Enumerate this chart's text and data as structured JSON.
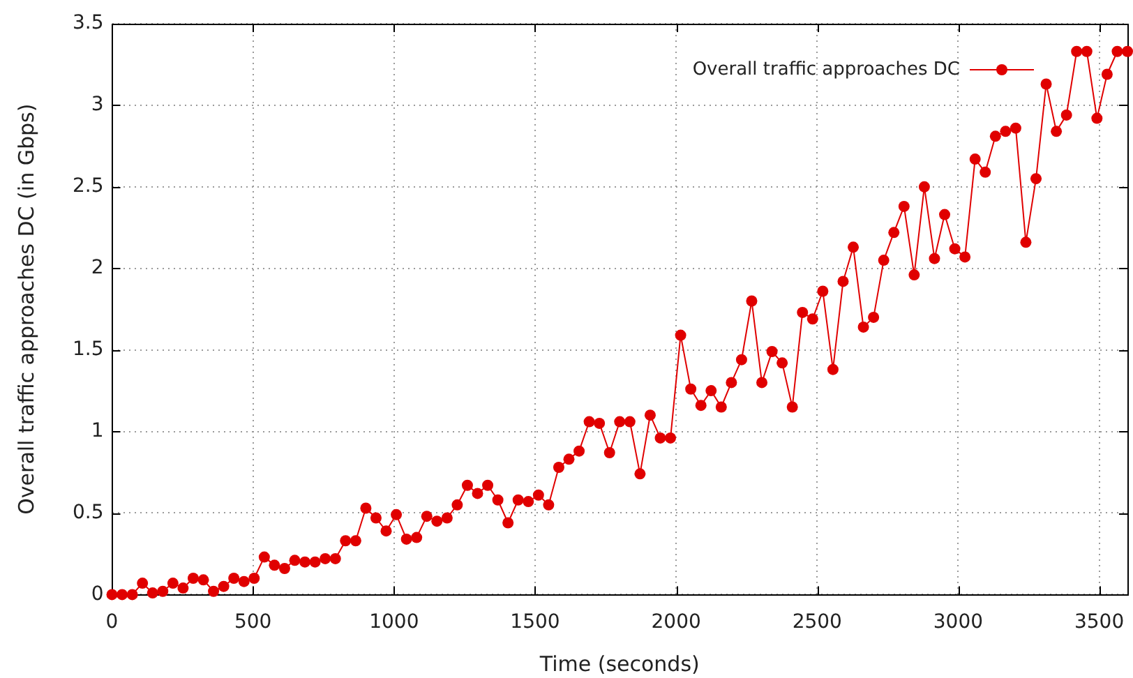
{
  "chart_data": {
    "type": "line",
    "xlabel": "Time (seconds)",
    "ylabel": "Overall traffic approaches DC (in Gbps)",
    "x": [
      0,
      36,
      72,
      108,
      144,
      180,
      216,
      252,
      288,
      324,
      360,
      396,
      432,
      468,
      504,
      540,
      576,
      612,
      648,
      684,
      720,
      756,
      792,
      828,
      864,
      900,
      936,
      972,
      1008,
      1044,
      1080,
      1116,
      1152,
      1188,
      1224,
      1260,
      1296,
      1332,
      1368,
      1404,
      1440,
      1476,
      1512,
      1548,
      1584,
      1620,
      1656,
      1692,
      1728,
      1764,
      1800,
      1836,
      1872,
      1908,
      1944,
      1980,
      2016,
      2052,
      2088,
      2124,
      2160,
      2196,
      2232,
      2268,
      2304,
      2340,
      2376,
      2412,
      2448,
      2484,
      2520,
      2556,
      2592,
      2628,
      2664,
      2700,
      2736,
      2772,
      2808,
      2844,
      2880,
      2916,
      2952,
      2988,
      3024,
      3060,
      3096,
      3132,
      3168,
      3204,
      3240,
      3276,
      3312,
      3348,
      3384,
      3420,
      3456,
      3492,
      3528,
      3564,
      3600
    ],
    "series": [
      {
        "name": "Overall traffic approaches DC",
        "color": "#e00000",
        "values": [
          0,
          0,
          0,
          0.07,
          0.01,
          0.02,
          0.07,
          0.04,
          0.1,
          0.09,
          0.02,
          0.05,
          0.1,
          0.08,
          0.1,
          0.23,
          0.18,
          0.16,
          0.21,
          0.2,
          0.2,
          0.22,
          0.22,
          0.33,
          0.33,
          0.53,
          0.47,
          0.39,
          0.49,
          0.34,
          0.35,
          0.48,
          0.45,
          0.47,
          0.55,
          0.67,
          0.62,
          0.67,
          0.58,
          0.44,
          0.58,
          0.57,
          0.61,
          0.55,
          0.78,
          0.83,
          0.88,
          1.06,
          1.05,
          0.87,
          1.06,
          1.06,
          0.74,
          1.1,
          0.96,
          0.96,
          1.59,
          1.26,
          1.16,
          1.25,
          1.15,
          1.3,
          1.44,
          1.8,
          1.3,
          1.49,
          1.42,
          1.15,
          1.73,
          1.69,
          1.86,
          1.38,
          1.92,
          2.13,
          1.64,
          1.7,
          2.05,
          2.22,
          2.38,
          1.96,
          2.5,
          2.06,
          2.33,
          2.12,
          2.07,
          2.67,
          2.59,
          2.81,
          2.84,
          2.86,
          2.16,
          2.55,
          3.13,
          2.84,
          2.94,
          3.33,
          3.33,
          2.92,
          3.19,
          3.33,
          3.33
        ]
      }
    ],
    "xlim": [
      0,
      3600
    ],
    "xticks": [
      0,
      500,
      1000,
      1500,
      2000,
      2500,
      3000,
      3500
    ],
    "ylim": [
      0,
      3.5
    ],
    "yticks": [
      0,
      0.5,
      1,
      1.5,
      2,
      2.5,
      3,
      3.5
    ],
    "grid": true,
    "legend": "top right",
    "marker": "circle",
    "line_style": "solid"
  }
}
